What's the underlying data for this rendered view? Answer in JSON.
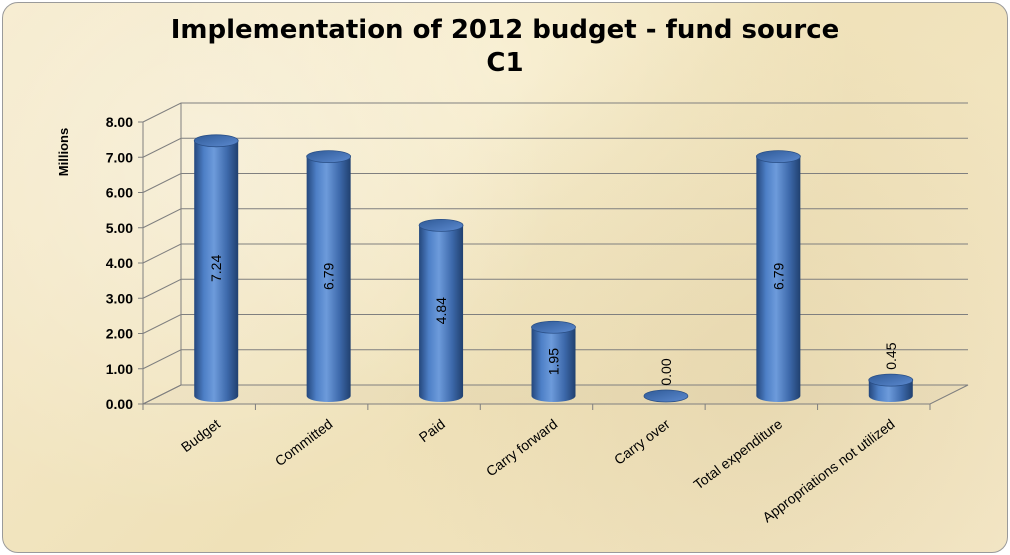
{
  "chart_data": {
    "type": "bar",
    "title": "Implementation of 2012 budget - fund source",
    "subtitle": "C1",
    "xlabel": "",
    "ylabel": "Millions",
    "ylim": [
      0,
      8
    ],
    "y_ticks": [
      "0.00",
      "1.00",
      "2.00",
      "3.00",
      "4.00",
      "5.00",
      "6.00",
      "7.00",
      "8.00"
    ],
    "grid": true,
    "legend": "none",
    "categories": [
      "Budget",
      "Committed",
      "Paid",
      "Carry forward",
      "Carry over",
      "Total expenditure",
      "Appropriations not utilized"
    ],
    "values": [
      7.24,
      6.79,
      4.84,
      1.95,
      0.0,
      6.79,
      0.45
    ],
    "data_labels": [
      "7.24",
      "6.79",
      "4.84",
      "1.95",
      "0.00",
      "6.79",
      "0.45"
    ],
    "bar_color": "#3f6fb5"
  }
}
